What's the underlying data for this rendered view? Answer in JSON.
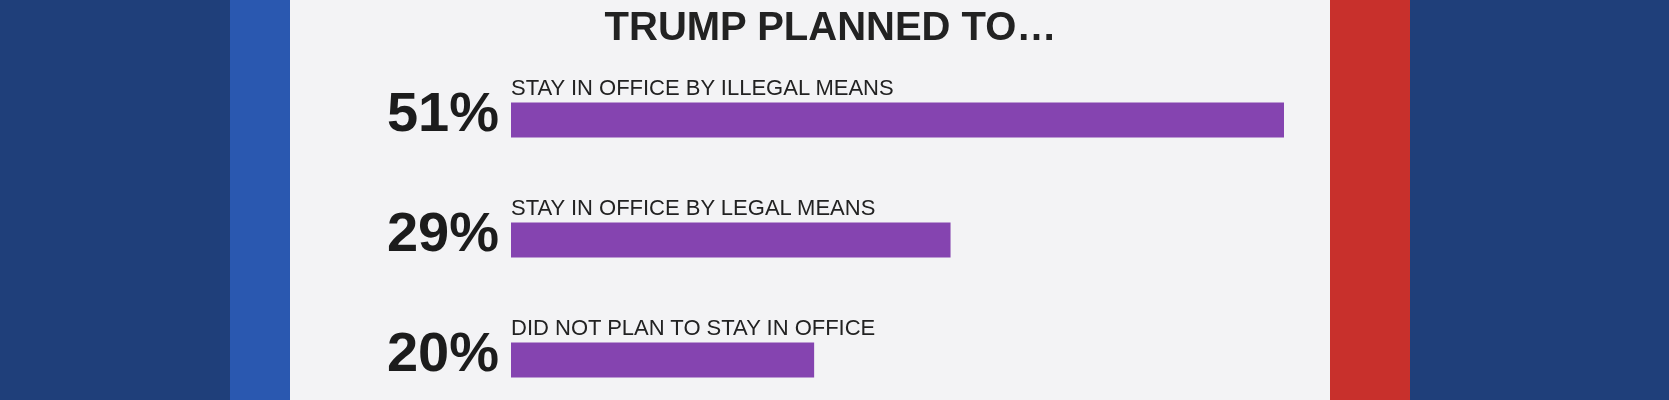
{
  "chart_data": {
    "type": "bar",
    "orientation": "horizontal",
    "title": "TRUMP PLANNED TO…",
    "categories": [
      "STAY IN OFFICE BY ILLEGAL MEANS",
      "STAY IN OFFICE  BY LEGAL MEANS",
      "DID NOT PLAN TO STAY IN OFFICE"
    ],
    "values": [
      51,
      29,
      20
    ],
    "value_labels": [
      "51%",
      "29%",
      "20%"
    ],
    "color": "#8544b0"
  }
}
